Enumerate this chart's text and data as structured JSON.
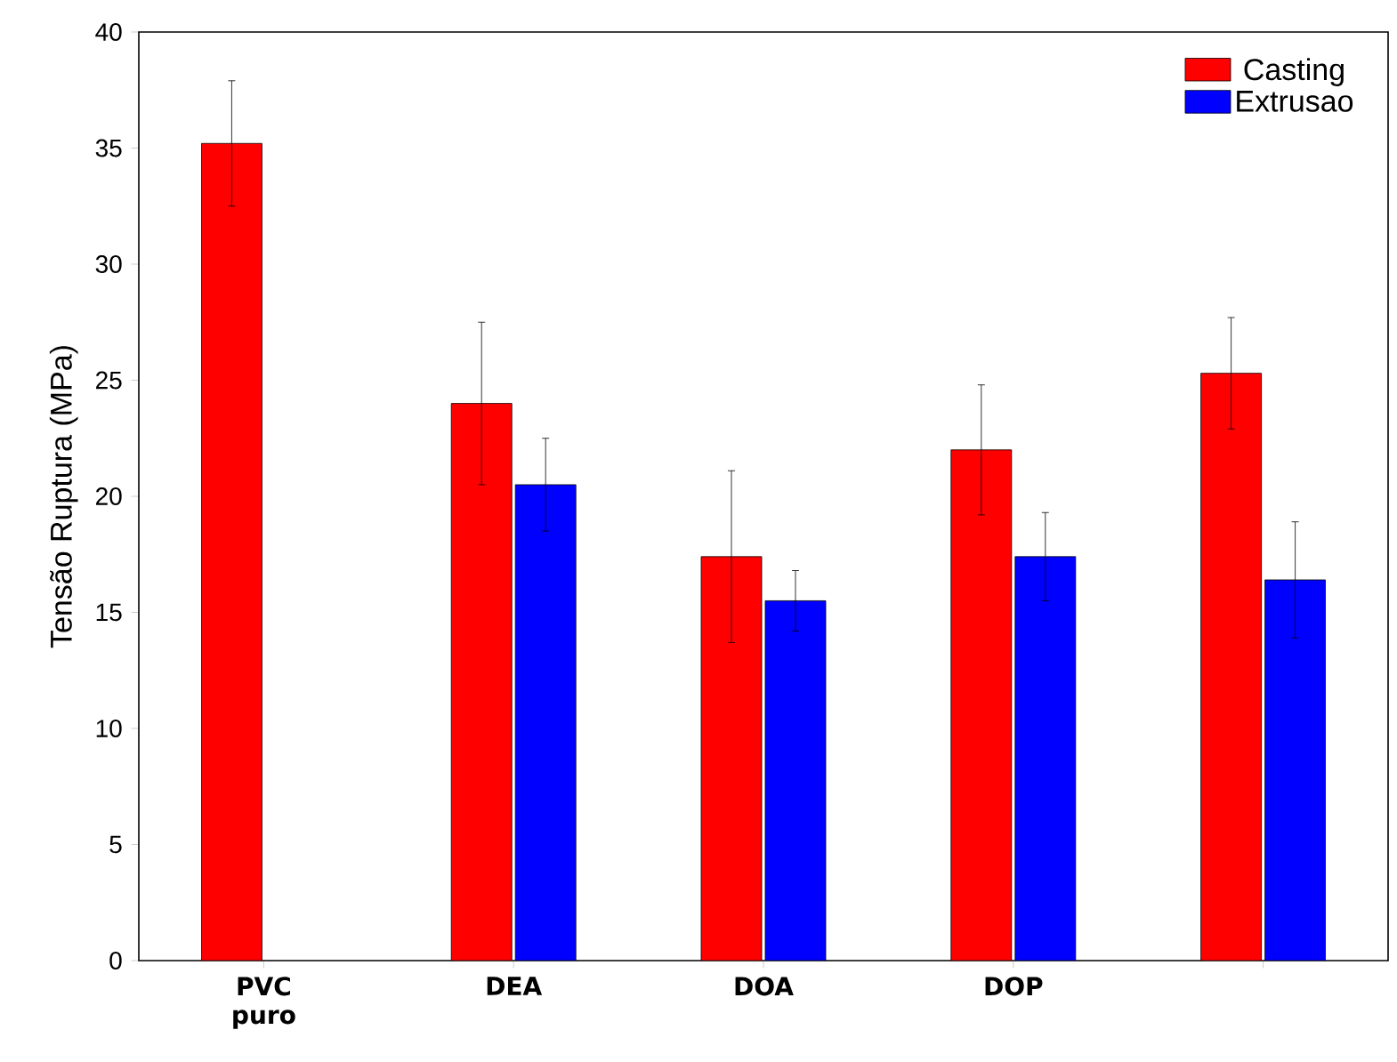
{
  "chart_data": {
    "type": "bar",
    "ylabel": "Tensão Ruptura (MPa)",
    "categories": [
      "PVC puro",
      "DEA",
      "DOA",
      "DOP",
      null
    ],
    "series": [
      {
        "name": "Casting",
        "color": "#ff0000",
        "values": [
          35.2,
          24.0,
          17.4,
          22.0,
          25.3
        ],
        "errors": [
          2.7,
          3.5,
          3.7,
          2.8,
          2.4
        ]
      },
      {
        "name": "Extrusao",
        "color": "#0000ff",
        "values": [
          null,
          20.5,
          15.5,
          17.4,
          16.4
        ],
        "errors": [
          null,
          2.0,
          1.3,
          1.9,
          2.5
        ]
      }
    ],
    "ylim": [
      0,
      40
    ],
    "yticks": [
      0,
      5,
      10,
      15,
      20,
      25,
      30,
      35,
      40
    ],
    "legend": "top right",
    "grid": false
  }
}
